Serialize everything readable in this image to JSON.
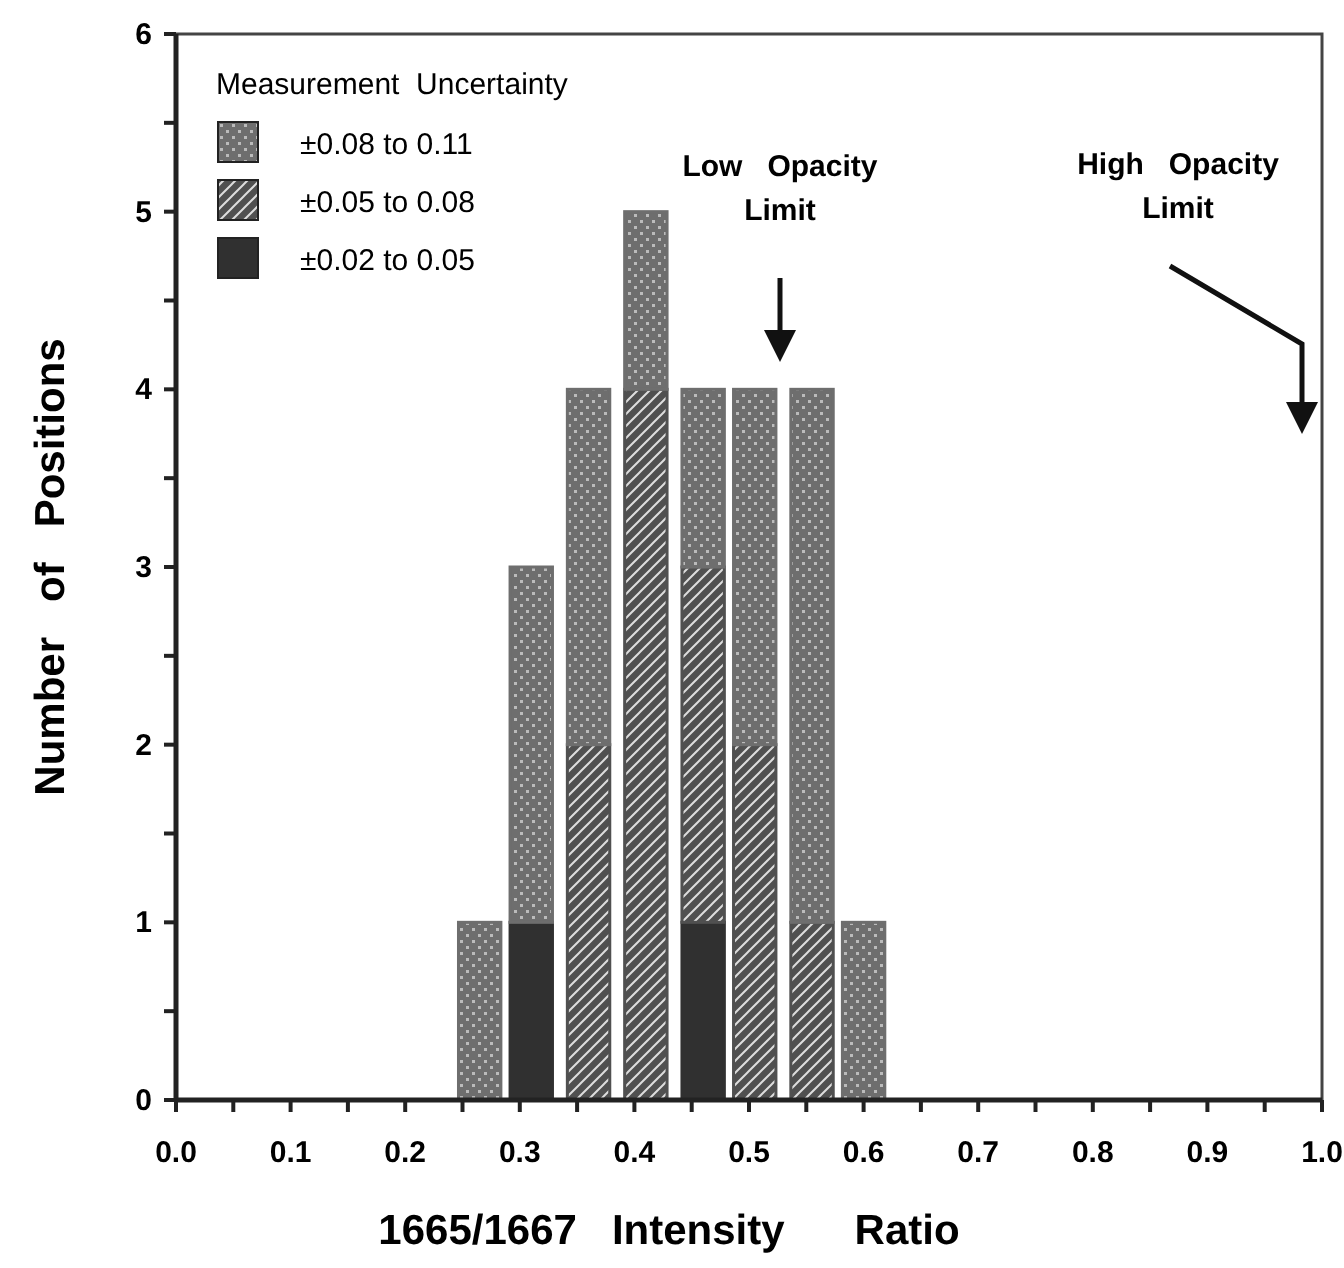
{
  "chart_data": {
    "type": "bar",
    "stacked": true,
    "xlabel": "1665/1667   Intensity      Ratio",
    "ylabel": "Number   of   Positions",
    "legend_title": "Measurement  Uncertainty",
    "legend": "top left",
    "x": [
      0.265,
      0.31,
      0.36,
      0.41,
      0.46,
      0.505,
      0.555,
      0.6
    ],
    "series": [
      {
        "name": "±0.02 to 0.05",
        "color": "#303030",
        "values": [
          0,
          1,
          0,
          0,
          1,
          0,
          0,
          0
        ]
      },
      {
        "name": "±0.05 to 0.08",
        "color": "#505050",
        "values": [
          0,
          0,
          2,
          4,
          2,
          2,
          1,
          0
        ]
      },
      {
        "name": "±0.08 to 0.11",
        "color": "#6e6e6e",
        "values": [
          1,
          2,
          2,
          1,
          1,
          2,
          3,
          1
        ]
      }
    ],
    "xlim": [
      0,
      1
    ],
    "ylim": [
      0,
      6
    ],
    "xticks": [
      {
        "value": 0,
        "label": "0.0"
      },
      {
        "value": 0.05,
        "label": null
      },
      {
        "value": 0.1,
        "label": "0.1"
      },
      {
        "value": 0.15,
        "label": null
      },
      {
        "value": 0.2,
        "label": "0.2"
      },
      {
        "value": 0.25,
        "label": null
      },
      {
        "value": 0.3,
        "label": "0.3"
      },
      {
        "value": 0.35,
        "label": null
      },
      {
        "value": 0.4,
        "label": "0.4"
      },
      {
        "value": 0.45,
        "label": null
      },
      {
        "value": 0.5,
        "label": "0.5"
      },
      {
        "value": 0.55,
        "label": null
      },
      {
        "value": 0.6,
        "label": "0.6"
      },
      {
        "value": 0.65,
        "label": null
      },
      {
        "value": 0.7,
        "label": "0.7"
      },
      {
        "value": 0.75,
        "label": null
      },
      {
        "value": 0.8,
        "label": "0.8"
      },
      {
        "value": 0.85,
        "label": null
      },
      {
        "value": 0.9,
        "label": "0.9"
      },
      {
        "value": 0.95,
        "label": null
      },
      {
        "value": 1,
        "label": "1.0"
      }
    ],
    "yticks": [
      0,
      {
        "value": 0.5,
        "label": null
      },
      1,
      {
        "value": 1.5,
        "label": null
      },
      2,
      {
        "value": 2.5,
        "label": null
      },
      3,
      {
        "value": 3.5,
        "label": null
      },
      4,
      {
        "value": 4.5,
        "label": null
      },
      5,
      {
        "value": 5.5,
        "label": null
      },
      6
    ],
    "annotations": [
      "Low   Opacity\nLimit",
      "High   Opacity\nLimit"
    ],
    "grid": false
  }
}
